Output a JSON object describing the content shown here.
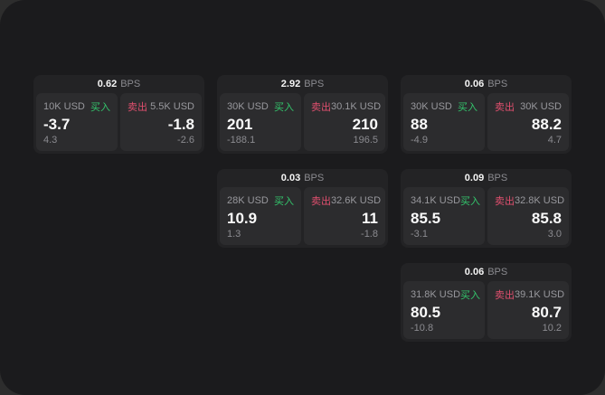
{
  "labels": {
    "bps_unit": "BPS",
    "buy": "买入",
    "sell": "卖出"
  },
  "colors": {
    "outer_background": "#2d2d2d",
    "window_background": "#1b1b1d",
    "card_background": "#232325",
    "panel_background": "#2c2c2e",
    "buy_green": "#33c56c",
    "sell_red": "#e04f6e",
    "value_white": "#fafafa",
    "muted_gray": "#8b8b90"
  },
  "cards": [
    {
      "bps": "0.62",
      "buy": {
        "size": "10K USD",
        "value": "-3.7",
        "sub_value": "4.3"
      },
      "sell": {
        "size": "5.5K USD",
        "value": "-1.8",
        "sub_value": "-2.6"
      }
    },
    {
      "bps": "2.92",
      "buy": {
        "size": "30K USD",
        "value": "201",
        "sub_value": "-188.1"
      },
      "sell": {
        "size": "30.1K USD",
        "value": "210",
        "sub_value": "196.5"
      }
    },
    {
      "bps": "0.06",
      "buy": {
        "size": "30K USD",
        "value": "88",
        "sub_value": "-4.9"
      },
      "sell": {
        "size": "30K USD",
        "value": "88.2",
        "sub_value": "4.7"
      }
    },
    {
      "bps": "0.03",
      "buy": {
        "size": "28K USD",
        "value": "10.9",
        "sub_value": "1.3"
      },
      "sell": {
        "size": "32.6K USD",
        "value": "11",
        "sub_value": "-1.8"
      }
    },
    {
      "bps": "0.09",
      "buy": {
        "size": "34.1K USD",
        "value": "85.5",
        "sub_value": "-3.1"
      },
      "sell": {
        "size": "32.8K USD",
        "value": "85.8",
        "sub_value": "3.0"
      }
    },
    {
      "bps": "0.06",
      "buy": {
        "size": "31.8K USD",
        "value": "80.5",
        "sub_value": "-10.8"
      },
      "sell": {
        "size": "39.1K USD",
        "value": "80.7",
        "sub_value": "10.2"
      }
    }
  ]
}
